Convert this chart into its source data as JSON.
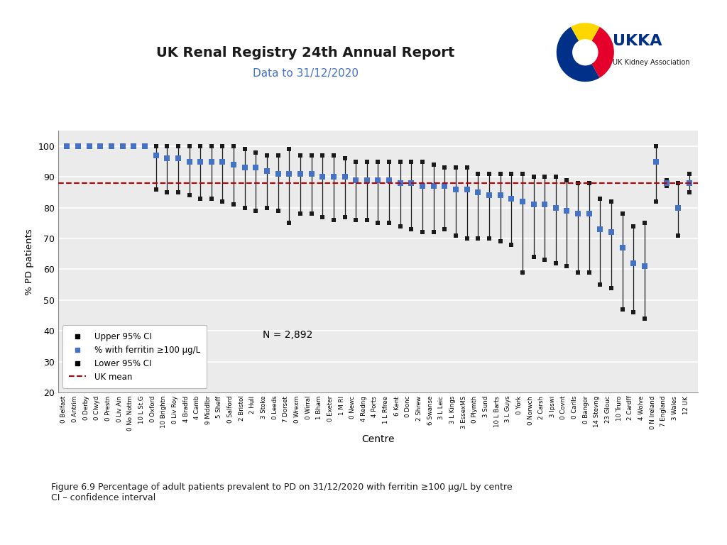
{
  "title": "UK Renal Registry 24th Annual Report",
  "subtitle": "Data to 31/12/2020",
  "xlabel": "Centre",
  "ylabel": "% PD patients",
  "uk_mean": 88.0,
  "n_label": "N = 2,892",
  "ylim": [
    20,
    105
  ],
  "yticks": [
    20,
    30,
    40,
    50,
    60,
    70,
    80,
    90,
    100
  ],
  "background_color": "#ebebeb",
  "centres": [
    "0 Belfast",
    "0 Antrim",
    "0 Derby",
    "0 Clwyd",
    "0 Prestn",
    "0 Liv Ain",
    "0 No Nottm",
    "10 L St.G",
    "0 Oxford",
    "10 Brightn",
    "0 Liv Roy",
    "4 Bradfd",
    "4 Camb",
    "9 Middlbr",
    "5 Sheff",
    "0 Salford",
    "2 Bristol",
    "2 Hull",
    "3 Stoke",
    "0 Leeds",
    "7 Dorset",
    "0 Wrexm",
    "0 Wirral",
    "1 Bham",
    "0 Exeter",
    "1 M RI",
    "0 Newc",
    "4 Redng",
    "4 Ports",
    "1 L Rfree",
    "6 Kent",
    "0 Donc",
    "2 Shrew",
    "6 Swanse",
    "3 L Leic",
    "3 L Kings",
    "3 EssexMS",
    "0 Plymth",
    "3 Sund",
    "10 L Barts",
    "3 L Guys",
    "0 York",
    "0 Norwch",
    "2 Carsh",
    "3 Ipswi",
    "0 Covnt",
    "0 Carlls",
    "0 Bangor",
    "14 Stevng",
    "23 Glouc",
    "10 Truro",
    "2 Cardff",
    "4 Wolve",
    "0 N Ireland",
    "7 England",
    "3 Wales",
    "12 UK"
  ],
  "pct": [
    100,
    100,
    100,
    100,
    100,
    100,
    100,
    100,
    97,
    96,
    96,
    95,
    95,
    95,
    95,
    94,
    93,
    93,
    92,
    91,
    91,
    91,
    91,
    90,
    90,
    90,
    89,
    89,
    89,
    89,
    88,
    88,
    87,
    87,
    87,
    86,
    86,
    85,
    84,
    84,
    83,
    82,
    81,
    81,
    80,
    79,
    78,
    78,
    73,
    72,
    67,
    62,
    61,
    95,
    88,
    80,
    88
  ],
  "upper_ci": [
    100,
    100,
    100,
    100,
    100,
    100,
    100,
    100,
    100,
    100,
    100,
    100,
    100,
    100,
    100,
    100,
    99,
    98,
    97,
    97,
    99,
    97,
    97,
    97,
    97,
    96,
    95,
    95,
    95,
    95,
    95,
    95,
    95,
    94,
    93,
    93,
    93,
    91,
    91,
    91,
    91,
    91,
    90,
    90,
    90,
    89,
    88,
    88,
    83,
    82,
    78,
    74,
    75,
    100,
    89,
    88,
    91
  ],
  "lower_ci": [
    100,
    100,
    100,
    100,
    100,
    100,
    100,
    100,
    86,
    85,
    85,
    84,
    83,
    83,
    82,
    81,
    80,
    79,
    80,
    79,
    75,
    78,
    78,
    77,
    76,
    77,
    76,
    76,
    75,
    75,
    74,
    73,
    72,
    72,
    73,
    71,
    70,
    70,
    70,
    69,
    68,
    59,
    64,
    63,
    62,
    61,
    59,
    59,
    55,
    54,
    47,
    46,
    44,
    82,
    87,
    71,
    85
  ],
  "bar_color": "#4472c4",
  "ci_color": "#1a1a1a",
  "uk_mean_color": "#c00000",
  "marker_size": 4,
  "figure_caption": "Figure 6.9 Percentage of adult patients prevalent to PD on 31/12/2020 with ferritin ≥100 μg/L by centre\nCI – confidence interval"
}
